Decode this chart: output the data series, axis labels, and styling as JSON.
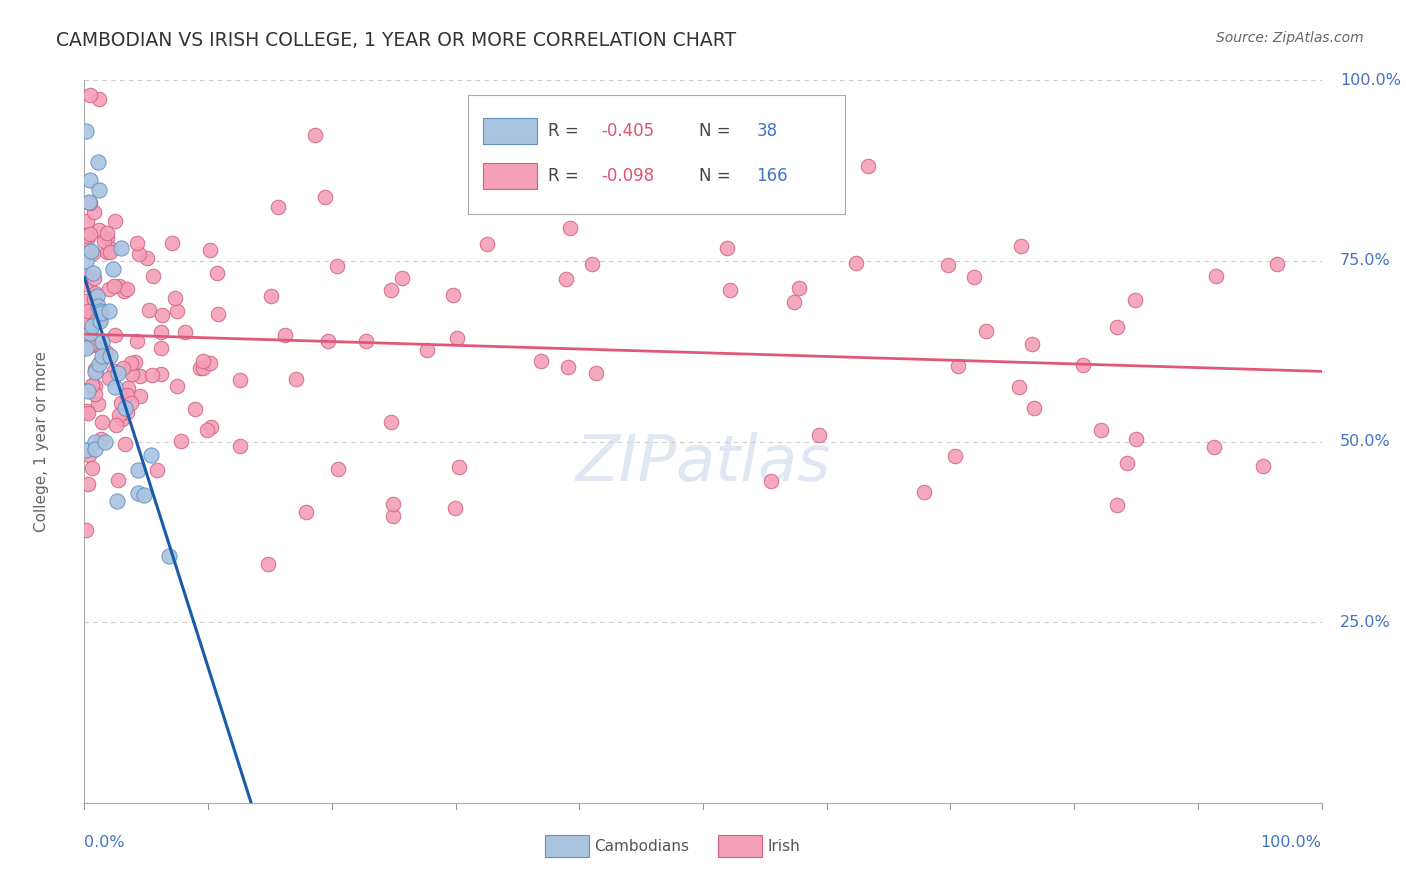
{
  "title": "CAMBODIAN VS IRISH COLLEGE, 1 YEAR OR MORE CORRELATION CHART",
  "source": "Source: ZipAtlas.com",
  "ylabel": "College, 1 year or more",
  "background_color": "#ffffff",
  "grid_color": "#cccccc",
  "title_color": "#333333",
  "axis_label_color": "#4472c4",
  "ylabel_color": "#666666",
  "cambodian_dot_color": "#aac4e0",
  "cambodian_dot_edge_color": "#6090c0",
  "irish_dot_color": "#f4a0b8",
  "irish_dot_edge_color": "#d06080",
  "cambodian_line_color": "#1a5aaa",
  "irish_line_color": "#e05878",
  "dashed_line_color": "#b0bcd0",
  "legend_R_color": "#e05070",
  "legend_N_color": "#4472c4",
  "source_color": "#666666",
  "camb_seed": 7,
  "irish_seed": 13
}
